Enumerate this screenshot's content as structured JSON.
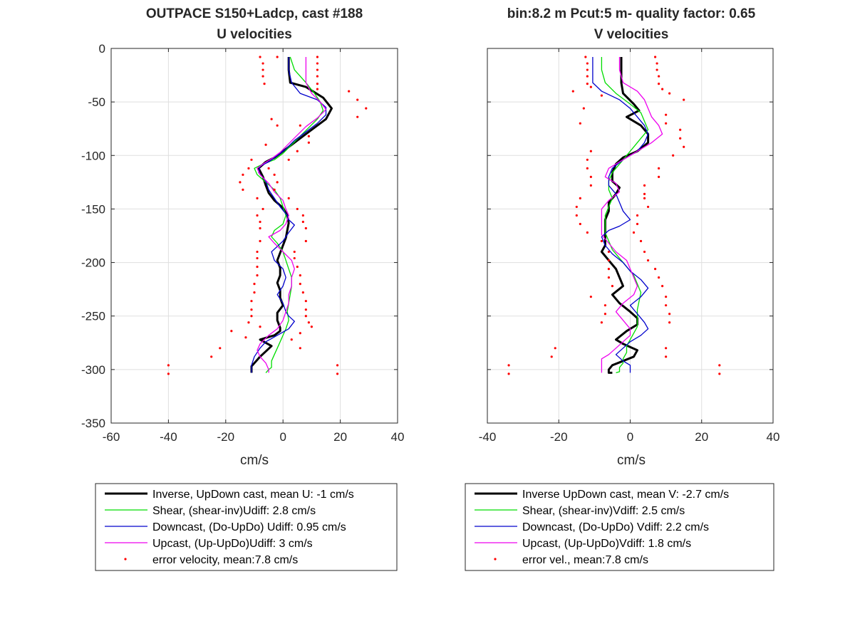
{
  "chart_data": [
    {
      "type": "line",
      "title": [
        "OUTPACE S150+Ladcp, cast #188",
        "U velocities"
      ],
      "xlabel": "cm/s",
      "ylabel": "",
      "xlim": [
        -60,
        40
      ],
      "ylim": [
        -350,
        0
      ],
      "xticks": [
        -60,
        -40,
        -20,
        0,
        20,
        40
      ],
      "yticks": [
        0,
        -50,
        -100,
        -150,
        -200,
        -250,
        -300,
        -350
      ],
      "grid": true,
      "legend_position": "bottom",
      "series": [
        {
          "name": "Inverse, UpDown cast, mean U:  -1 cm/s",
          "color": "#000000",
          "width": 3,
          "x": [
            2,
            2,
            2.5,
            8,
            14,
            17,
            15,
            11,
            7,
            3,
            0,
            -3,
            -6,
            -8.5,
            -7,
            -6,
            -5,
            -3,
            0,
            1.5,
            2,
            1.5,
            1,
            0,
            -1,
            -2,
            -1,
            -1,
            -2,
            -1,
            -1,
            0,
            -2,
            -2,
            -1,
            -1,
            -3,
            -8,
            -4,
            -6,
            -8,
            -11,
            -11
          ],
          "y": [
            -8,
            -20,
            -32,
            -36,
            -46,
            -56,
            -66,
            -74,
            -82,
            -90,
            -96,
            -102,
            -106,
            -112,
            -120,
            -128,
            -135,
            -142,
            -149,
            -156,
            -163,
            -170,
            -177,
            -184,
            -191,
            -198,
            -205,
            -212,
            -219,
            -226,
            -233,
            -240,
            -247,
            -254,
            -261,
            -264,
            -268,
            -272,
            -278,
            -283,
            -288,
            -297,
            -303
          ]
        },
        {
          "name": "Shear, (shear-inv)Udiff:  2.8 cm/s",
          "color": "#00dd00",
          "width": 1.3,
          "x": [
            2.5,
            4,
            8,
            11,
            13,
            14,
            12,
            9,
            6,
            3,
            0,
            -3,
            -7,
            -10,
            -9,
            -6,
            -3,
            -1,
            0,
            1,
            0,
            -3,
            -4,
            -2,
            0,
            1,
            2,
            3,
            3,
            2.5,
            2,
            1.5,
            2,
            1,
            0,
            -1,
            -2,
            -3,
            -4,
            -4,
            -5,
            -6
          ],
          "y": [
            -8,
            -20,
            -32,
            -42,
            -50,
            -58,
            -66,
            -74,
            -82,
            -90,
            -98,
            -104,
            -108,
            -112,
            -118,
            -125,
            -132,
            -140,
            -148,
            -156,
            -164,
            -170,
            -176,
            -182,
            -190,
            -198,
            -206,
            -214,
            -222,
            -230,
            -238,
            -246,
            -254,
            -262,
            -268,
            -274,
            -280,
            -286,
            -292,
            -298,
            -300,
            -303
          ]
        },
        {
          "name": "Downcast, (Do-UpDo) Udiff:  0.95 cm/s",
          "color": "#0000cc",
          "width": 1.3,
          "x": [
            2,
            2,
            3,
            6,
            12,
            15,
            15,
            12,
            8,
            4,
            1,
            -2,
            -5,
            -8,
            -8.5,
            -6,
            -5,
            -3,
            -1,
            1.5,
            2,
            4,
            2,
            0,
            -4,
            -3,
            0,
            1,
            0,
            -2,
            0,
            1,
            2,
            4,
            2,
            -2,
            -6,
            -8,
            -10,
            -11,
            -11
          ],
          "y": [
            -8,
            -20,
            -32,
            -42,
            -48,
            -55,
            -62,
            -70,
            -78,
            -86,
            -94,
            -100,
            -106,
            -110,
            -116,
            -124,
            -132,
            -140,
            -148,
            -156,
            -160,
            -165,
            -172,
            -180,
            -190,
            -198,
            -206,
            -214,
            -222,
            -230,
            -238,
            -246,
            -250,
            -255,
            -262,
            -268,
            -274,
            -280,
            -288,
            -296,
            -303
          ]
        },
        {
          "name": "Upcast, (Up-UpDo)Udiff:  3 cm/s",
          "color": "#ee00ee",
          "width": 1.3,
          "x": [
            8,
            8,
            8,
            10,
            13,
            15,
            12,
            8,
            5,
            2,
            -1,
            -4,
            -7,
            -9,
            -8,
            -5,
            -3,
            0,
            1,
            2,
            1,
            -1,
            -5,
            -3,
            0,
            3,
            4,
            3,
            3,
            2,
            2,
            1,
            0,
            -2,
            -5,
            -8,
            -9,
            -8,
            -6,
            -5,
            -5
          ],
          "y": [
            -8,
            -20,
            -32,
            -42,
            -50,
            -57,
            -65,
            -73,
            -81,
            -89,
            -97,
            -103,
            -108,
            -112,
            -118,
            -126,
            -134,
            -142,
            -150,
            -156,
            -164,
            -170,
            -176,
            -182,
            -190,
            -198,
            -206,
            -214,
            -222,
            -230,
            -238,
            -246,
            -254,
            -262,
            -268,
            -276,
            -282,
            -288,
            -294,
            -300,
            -303
          ]
        },
        {
          "name": "error velocity, mean:7.8 cm/s",
          "color": "#ff0000",
          "marker": "dot",
          "x": [
            -8,
            -7,
            -7,
            -7,
            -6.5,
            -2,
            12,
            12,
            12,
            12,
            12,
            12,
            23,
            26,
            29,
            26,
            -4,
            6,
            -2,
            9,
            9,
            -6,
            5,
            -11,
            2,
            -12,
            -5,
            -14,
            -3,
            -15,
            -2,
            -14,
            -3,
            -9,
            2,
            -7,
            5,
            -9,
            7,
            -8,
            7,
            -8,
            8,
            -8,
            8,
            -9,
            4,
            -9,
            4,
            -9,
            5,
            -9,
            6,
            -10,
            6,
            -10,
            7,
            -11,
            8,
            -11,
            8,
            -11,
            8,
            -12,
            9,
            -8,
            10,
            -18,
            6,
            -13,
            3,
            -22,
            6,
            -25,
            -40,
            -40,
            19,
            19
          ],
          "y": [
            -8,
            -14,
            -20,
            -26,
            -33,
            -8,
            -8,
            -14,
            -20,
            -26,
            -33,
            -38,
            -40,
            -48,
            -56,
            -64,
            -66,
            -72,
            -72,
            -82,
            -88,
            -90,
            -96,
            -104,
            -104,
            -112,
            -112,
            -118,
            -118,
            -125,
            -125,
            -132,
            -132,
            -140,
            -140,
            -150,
            -150,
            -156,
            -156,
            -162,
            -162,
            -168,
            -168,
            -180,
            -180,
            -190,
            -190,
            -196,
            -196,
            -204,
            -204,
            -212,
            -212,
            -220,
            -220,
            -228,
            -228,
            -236,
            -236,
            -244,
            -244,
            -250,
            -250,
            -256,
            -256,
            -260,
            -260,
            -264,
            -266,
            -270,
            -272,
            -280,
            -280,
            -288,
            -296,
            -304,
            -296,
            -304
          ]
        }
      ]
    },
    {
      "type": "line",
      "title": [
        "bin:8.2 m  Pcut:5 m- quality factor:  0.65",
        "V velocities"
      ],
      "xlabel": "cm/s",
      "ylabel": "",
      "xlim": [
        -40,
        40
      ],
      "ylim": [
        -350,
        0
      ],
      "xticks": [
        -40,
        -20,
        0,
        20,
        40
      ],
      "yticks": [
        0,
        -50,
        -100,
        -150,
        -200,
        -250,
        -300,
        -350
      ],
      "grid": true,
      "legend_position": "bottom",
      "series": [
        {
          "name": "Inverse UpDown cast, mean V:  -2.7 cm/s",
          "color": "#000000",
          "width": 3,
          "x": [
            -2.5,
            -2.5,
            -2.5,
            -2,
            1,
            2.5,
            -1,
            3,
            5,
            5,
            2,
            -2,
            -4,
            -5,
            -5,
            -3,
            -4,
            -6,
            -6,
            -7,
            -7,
            -7,
            -7,
            -8,
            -6,
            -4,
            -3,
            -2,
            -5,
            -3,
            0,
            2,
            2,
            -1,
            -4,
            -2,
            2,
            1,
            -2,
            -5,
            -6,
            -6,
            -5
          ],
          "y": [
            -8,
            -20,
            -32,
            -42,
            -52,
            -58,
            -64,
            -72,
            -80,
            -88,
            -96,
            -102,
            -108,
            -116,
            -124,
            -130,
            -136,
            -144,
            -152,
            -160,
            -168,
            -176,
            -184,
            -190,
            -198,
            -206,
            -214,
            -222,
            -230,
            -238,
            -246,
            -252,
            -258,
            -264,
            -272,
            -276,
            -282,
            -288,
            -292,
            -296,
            -300,
            -303,
            -303
          ]
        },
        {
          "name": "Shear, (shear-inv)Vdiff:  2.5 cm/s",
          "color": "#00dd00",
          "width": 1.3,
          "x": [
            -8,
            -8,
            -7,
            -4,
            0,
            3,
            4,
            5,
            3,
            1,
            -1,
            -3,
            -5,
            -6,
            -6,
            -5,
            -6,
            -7,
            -7,
            -7,
            -6,
            -5,
            -3,
            -1,
            1,
            2,
            3,
            2.5,
            2,
            2,
            2,
            1,
            0,
            -1,
            -1,
            -2,
            -2,
            -3,
            -3,
            -3,
            -4
          ],
          "y": [
            -8,
            -20,
            -32,
            -42,
            -52,
            -60,
            -68,
            -76,
            -84,
            -92,
            -100,
            -108,
            -116,
            -124,
            -132,
            -140,
            -148,
            -156,
            -164,
            -172,
            -180,
            -188,
            -196,
            -204,
            -212,
            -220,
            -228,
            -236,
            -244,
            -252,
            -260,
            -266,
            -272,
            -278,
            -284,
            -290,
            -294,
            -298,
            -300,
            -302,
            -303
          ]
        },
        {
          "name": "Downcast, (Do-UpDo) Vdiff:  2.2 cm/s",
          "color": "#0000cc",
          "width": 1.3,
          "x": [
            -10.5,
            -10.5,
            -10.5,
            -8,
            -3,
            0,
            2,
            4,
            5,
            4,
            2,
            -2,
            -5,
            -6,
            -6,
            -4,
            -3,
            -2,
            0,
            -3,
            -6,
            -8,
            -7,
            -5,
            -2,
            0,
            3,
            5,
            3,
            0,
            2,
            4,
            5,
            3,
            0,
            -2,
            -4,
            -2,
            0,
            0,
            0
          ],
          "y": [
            -8,
            -20,
            -32,
            -40,
            -48,
            -56,
            -64,
            -72,
            -80,
            -88,
            -96,
            -104,
            -112,
            -120,
            -128,
            -136,
            -144,
            -152,
            -160,
            -166,
            -170,
            -176,
            -184,
            -192,
            -200,
            -208,
            -216,
            -224,
            -232,
            -240,
            -248,
            -256,
            -262,
            -268,
            -274,
            -280,
            -286,
            -292,
            -296,
            -300,
            -303
          ]
        },
        {
          "name": "Upcast, (Up-UpDo)Vdiff:  1.8 cm/s",
          "color": "#ee00ee",
          "width": 1.3,
          "x": [
            -3,
            -3,
            -2,
            2,
            4,
            5,
            6,
            8,
            9,
            6,
            2,
            -2,
            -6,
            -7,
            -4,
            -3,
            -6,
            -8,
            -8,
            -8,
            -8,
            -6,
            -4,
            -1,
            0,
            1,
            2,
            1,
            -2,
            -4,
            -2,
            0,
            0,
            -2,
            -4,
            -6,
            -8,
            -8,
            -8,
            -8
          ],
          "y": [
            -8,
            -20,
            -32,
            -40,
            -48,
            -56,
            -64,
            -72,
            -80,
            -88,
            -96,
            -104,
            -112,
            -120,
            -126,
            -134,
            -142,
            -150,
            -158,
            -166,
            -174,
            -182,
            -190,
            -198,
            -206,
            -214,
            -222,
            -230,
            -238,
            -246,
            -254,
            -262,
            -268,
            -274,
            -280,
            -286,
            -290,
            -294,
            -298,
            -303
          ]
        },
        {
          "name": "error vel., mean:7.8 cm/s",
          "color": "#ff0000",
          "marker": "dot",
          "x": [
            -12.5,
            -12,
            -12,
            -12,
            -12,
            -16,
            -11,
            -8,
            7,
            7.5,
            7.5,
            8,
            8,
            9,
            11,
            15,
            -13,
            10,
            -14,
            10,
            14,
            14,
            15,
            -11,
            12,
            -12,
            8,
            -12,
            8,
            -11,
            4,
            -11,
            4,
            -14,
            4,
            -15,
            5,
            -15,
            2,
            -14,
            2,
            -12,
            1,
            -8,
            3,
            -6,
            4,
            -6,
            5,
            -6,
            7,
            -6,
            8,
            -5,
            9,
            -11,
            10,
            -7,
            10,
            -7,
            11,
            -8,
            11,
            -21,
            10,
            -22,
            10,
            -34,
            -34,
            25,
            25
          ],
          "y": [
            -8,
            -14,
            -20,
            -26,
            -33,
            -40,
            -36,
            -44,
            -8,
            -14,
            -20,
            -26,
            -33,
            -38,
            -42,
            -48,
            -56,
            -62,
            -70,
            -70,
            -76,
            -84,
            -92,
            -96,
            -100,
            -104,
            -112,
            -112,
            -120,
            -120,
            -128,
            -128,
            -136,
            -140,
            -140,
            -148,
            -148,
            -156,
            -156,
            -164,
            -164,
            -172,
            -172,
            -180,
            -180,
            -190,
            -190,
            -198,
            -198,
            -206,
            -206,
            -214,
            -214,
            -222,
            -222,
            -232,
            -232,
            -240,
            -240,
            -248,
            -248,
            -256,
            -256,
            -280,
            -280,
            -288,
            -288,
            -296,
            -304,
            -296,
            -304
          ]
        }
      ]
    }
  ]
}
